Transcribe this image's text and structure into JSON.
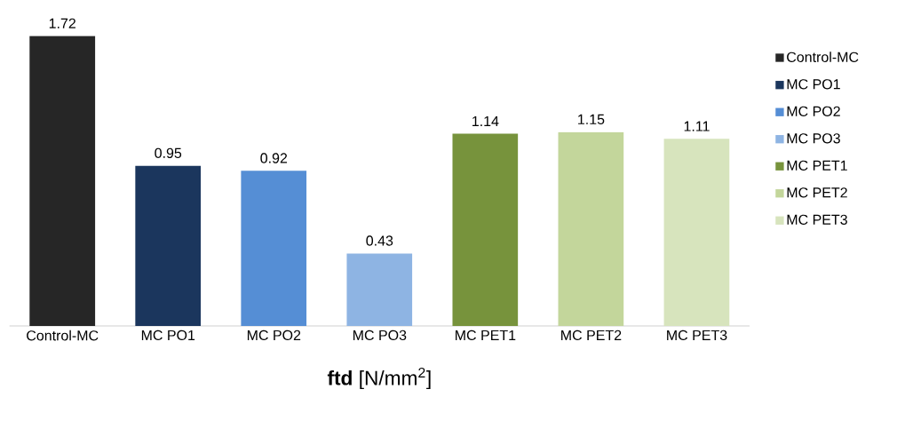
{
  "chart_data": {
    "type": "bar",
    "xlabel": "**ftd** [N/mm$^{2}$]",
    "categories": [
      "Control-MC",
      "MC PO1",
      "MC PO2",
      "MC PO3",
      "MC PET1",
      "MC PET2",
      "MC PET3"
    ],
    "series": [
      {
        "name": "Control-MC",
        "color": "#262626",
        "values": [
          1.72,
          null,
          null,
          null,
          null,
          null,
          null
        ]
      },
      {
        "name": "MC PO1",
        "color": "#1b365d",
        "values": [
          null,
          0.95,
          null,
          null,
          null,
          null,
          null
        ]
      },
      {
        "name": "MC PO2",
        "color": "#558ed5",
        "values": [
          null,
          null,
          0.92,
          null,
          null,
          null,
          null
        ]
      },
      {
        "name": "MC PO3",
        "color": "#8eb4e3",
        "values": [
          null,
          null,
          null,
          0.43,
          null,
          null,
          null
        ]
      },
      {
        "name": "MC PET1",
        "color": "#77933c",
        "values": [
          null,
          null,
          null,
          null,
          1.14,
          null,
          null
        ]
      },
      {
        "name": "MC PET2",
        "color": "#c3d69b",
        "values": [
          null,
          null,
          null,
          null,
          null,
          1.15,
          null
        ]
      },
      {
        "name": "MC PET3",
        "color": "#d7e4bd",
        "values": [
          null,
          null,
          null,
          null,
          null,
          null,
          1.11
        ]
      }
    ],
    "data_labels": true,
    "legend": "right",
    "grid": false
  }
}
